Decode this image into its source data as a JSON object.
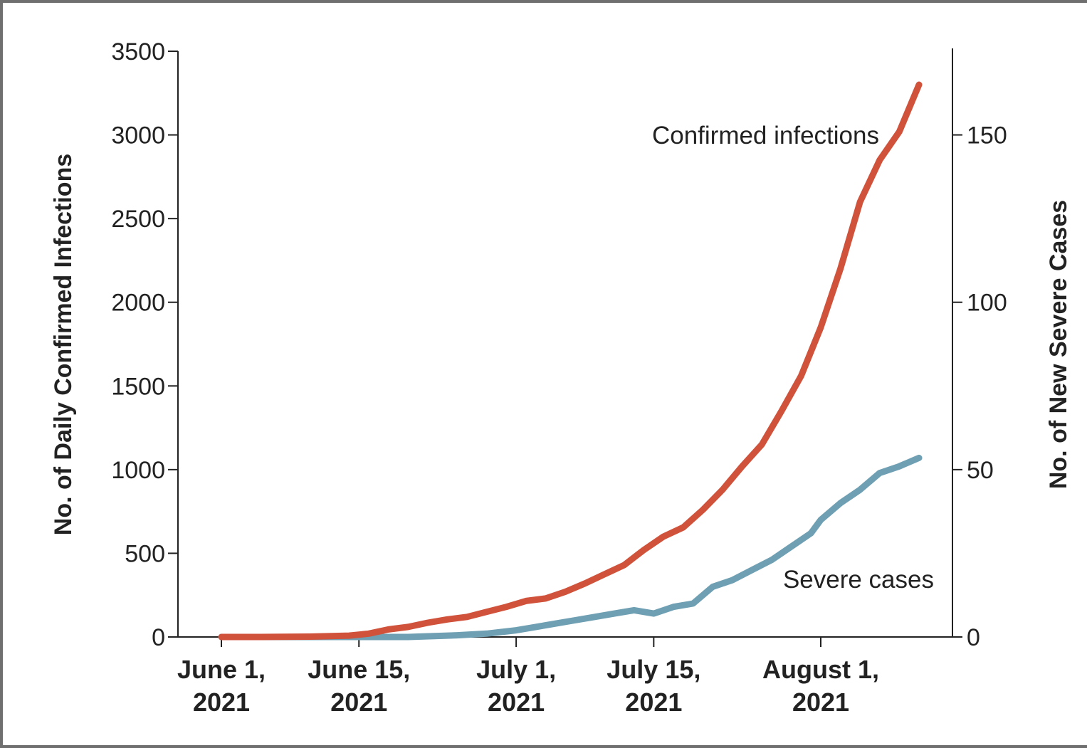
{
  "chart_data": {
    "type": "line",
    "title": "",
    "xlabel": "",
    "x_ticks": [
      {
        "date": "2021-06-01",
        "line1": "June 1,",
        "line2": "2021"
      },
      {
        "date": "2021-06-15",
        "line1": "June 15,",
        "line2": "2021"
      },
      {
        "date": "2021-07-01",
        "line1": "July 1,",
        "line2": "2021"
      },
      {
        "date": "2021-07-15",
        "line1": "July 15,",
        "line2": "2021"
      },
      {
        "date": "2021-08-01",
        "line1": "August 1,",
        "line2": "2021"
      }
    ],
    "y_left": {
      "label": "No. of Daily Confirmed Infections",
      "ylim": [
        0,
        3500
      ],
      "ticks": [
        0,
        500,
        1000,
        1500,
        2000,
        2500,
        3000,
        3500
      ]
    },
    "y_right": {
      "label": "No. of New Severe Cases",
      "ylim": [
        0,
        175
      ],
      "ticks": [
        0,
        50,
        100,
        150
      ]
    },
    "grid": false,
    "series": [
      {
        "name": "Confirmed infections",
        "axis": "left",
        "color": "#d0523b",
        "points": [
          [
            "2021-06-01",
            0
          ],
          [
            "2021-06-05",
            0
          ],
          [
            "2021-06-10",
            2
          ],
          [
            "2021-06-14",
            8
          ],
          [
            "2021-06-16",
            20
          ],
          [
            "2021-06-18",
            45
          ],
          [
            "2021-06-20",
            60
          ],
          [
            "2021-06-22",
            85
          ],
          [
            "2021-06-24",
            105
          ],
          [
            "2021-06-26",
            120
          ],
          [
            "2021-06-28",
            150
          ],
          [
            "2021-06-30",
            180
          ],
          [
            "2021-07-02",
            215
          ],
          [
            "2021-07-04",
            230
          ],
          [
            "2021-07-06",
            270
          ],
          [
            "2021-07-08",
            320
          ],
          [
            "2021-07-10",
            375
          ],
          [
            "2021-07-12",
            430
          ],
          [
            "2021-07-14",
            520
          ],
          [
            "2021-07-16",
            600
          ],
          [
            "2021-07-18",
            655
          ],
          [
            "2021-07-20",
            760
          ],
          [
            "2021-07-22",
            880
          ],
          [
            "2021-07-24",
            1020
          ],
          [
            "2021-07-26",
            1150
          ],
          [
            "2021-07-28",
            1350
          ],
          [
            "2021-07-30",
            1560
          ],
          [
            "2021-08-01",
            1850
          ],
          [
            "2021-08-03",
            2200
          ],
          [
            "2021-08-05",
            2600
          ],
          [
            "2021-08-07",
            2850
          ],
          [
            "2021-08-09",
            3020
          ],
          [
            "2021-08-11",
            3300
          ]
        ]
      },
      {
        "name": "Severe cases",
        "axis": "right",
        "color": "#6e9fb2",
        "points": [
          [
            "2021-06-01",
            0
          ],
          [
            "2021-06-10",
            0
          ],
          [
            "2021-06-20",
            0
          ],
          [
            "2021-06-25",
            0.5
          ],
          [
            "2021-06-28",
            1
          ],
          [
            "2021-07-01",
            2
          ],
          [
            "2021-07-03",
            3
          ],
          [
            "2021-07-05",
            4
          ],
          [
            "2021-07-07",
            5
          ],
          [
            "2021-07-09",
            6
          ],
          [
            "2021-07-11",
            7
          ],
          [
            "2021-07-13",
            8
          ],
          [
            "2021-07-15",
            7
          ],
          [
            "2021-07-17",
            9
          ],
          [
            "2021-07-19",
            10
          ],
          [
            "2021-07-21",
            15
          ],
          [
            "2021-07-23",
            17
          ],
          [
            "2021-07-25",
            20
          ],
          [
            "2021-07-27",
            23
          ],
          [
            "2021-07-29",
            27
          ],
          [
            "2021-07-31",
            31
          ],
          [
            "2021-08-01",
            35
          ],
          [
            "2021-08-03",
            40
          ],
          [
            "2021-08-05",
            44
          ],
          [
            "2021-08-07",
            49
          ],
          [
            "2021-08-09",
            51
          ],
          [
            "2021-08-11",
            53.5
          ]
        ]
      }
    ],
    "annotations": [
      {
        "text": "Confirmed infections",
        "series": "Confirmed infections"
      },
      {
        "text": "Severe cases",
        "series": "Severe cases"
      }
    ]
  }
}
